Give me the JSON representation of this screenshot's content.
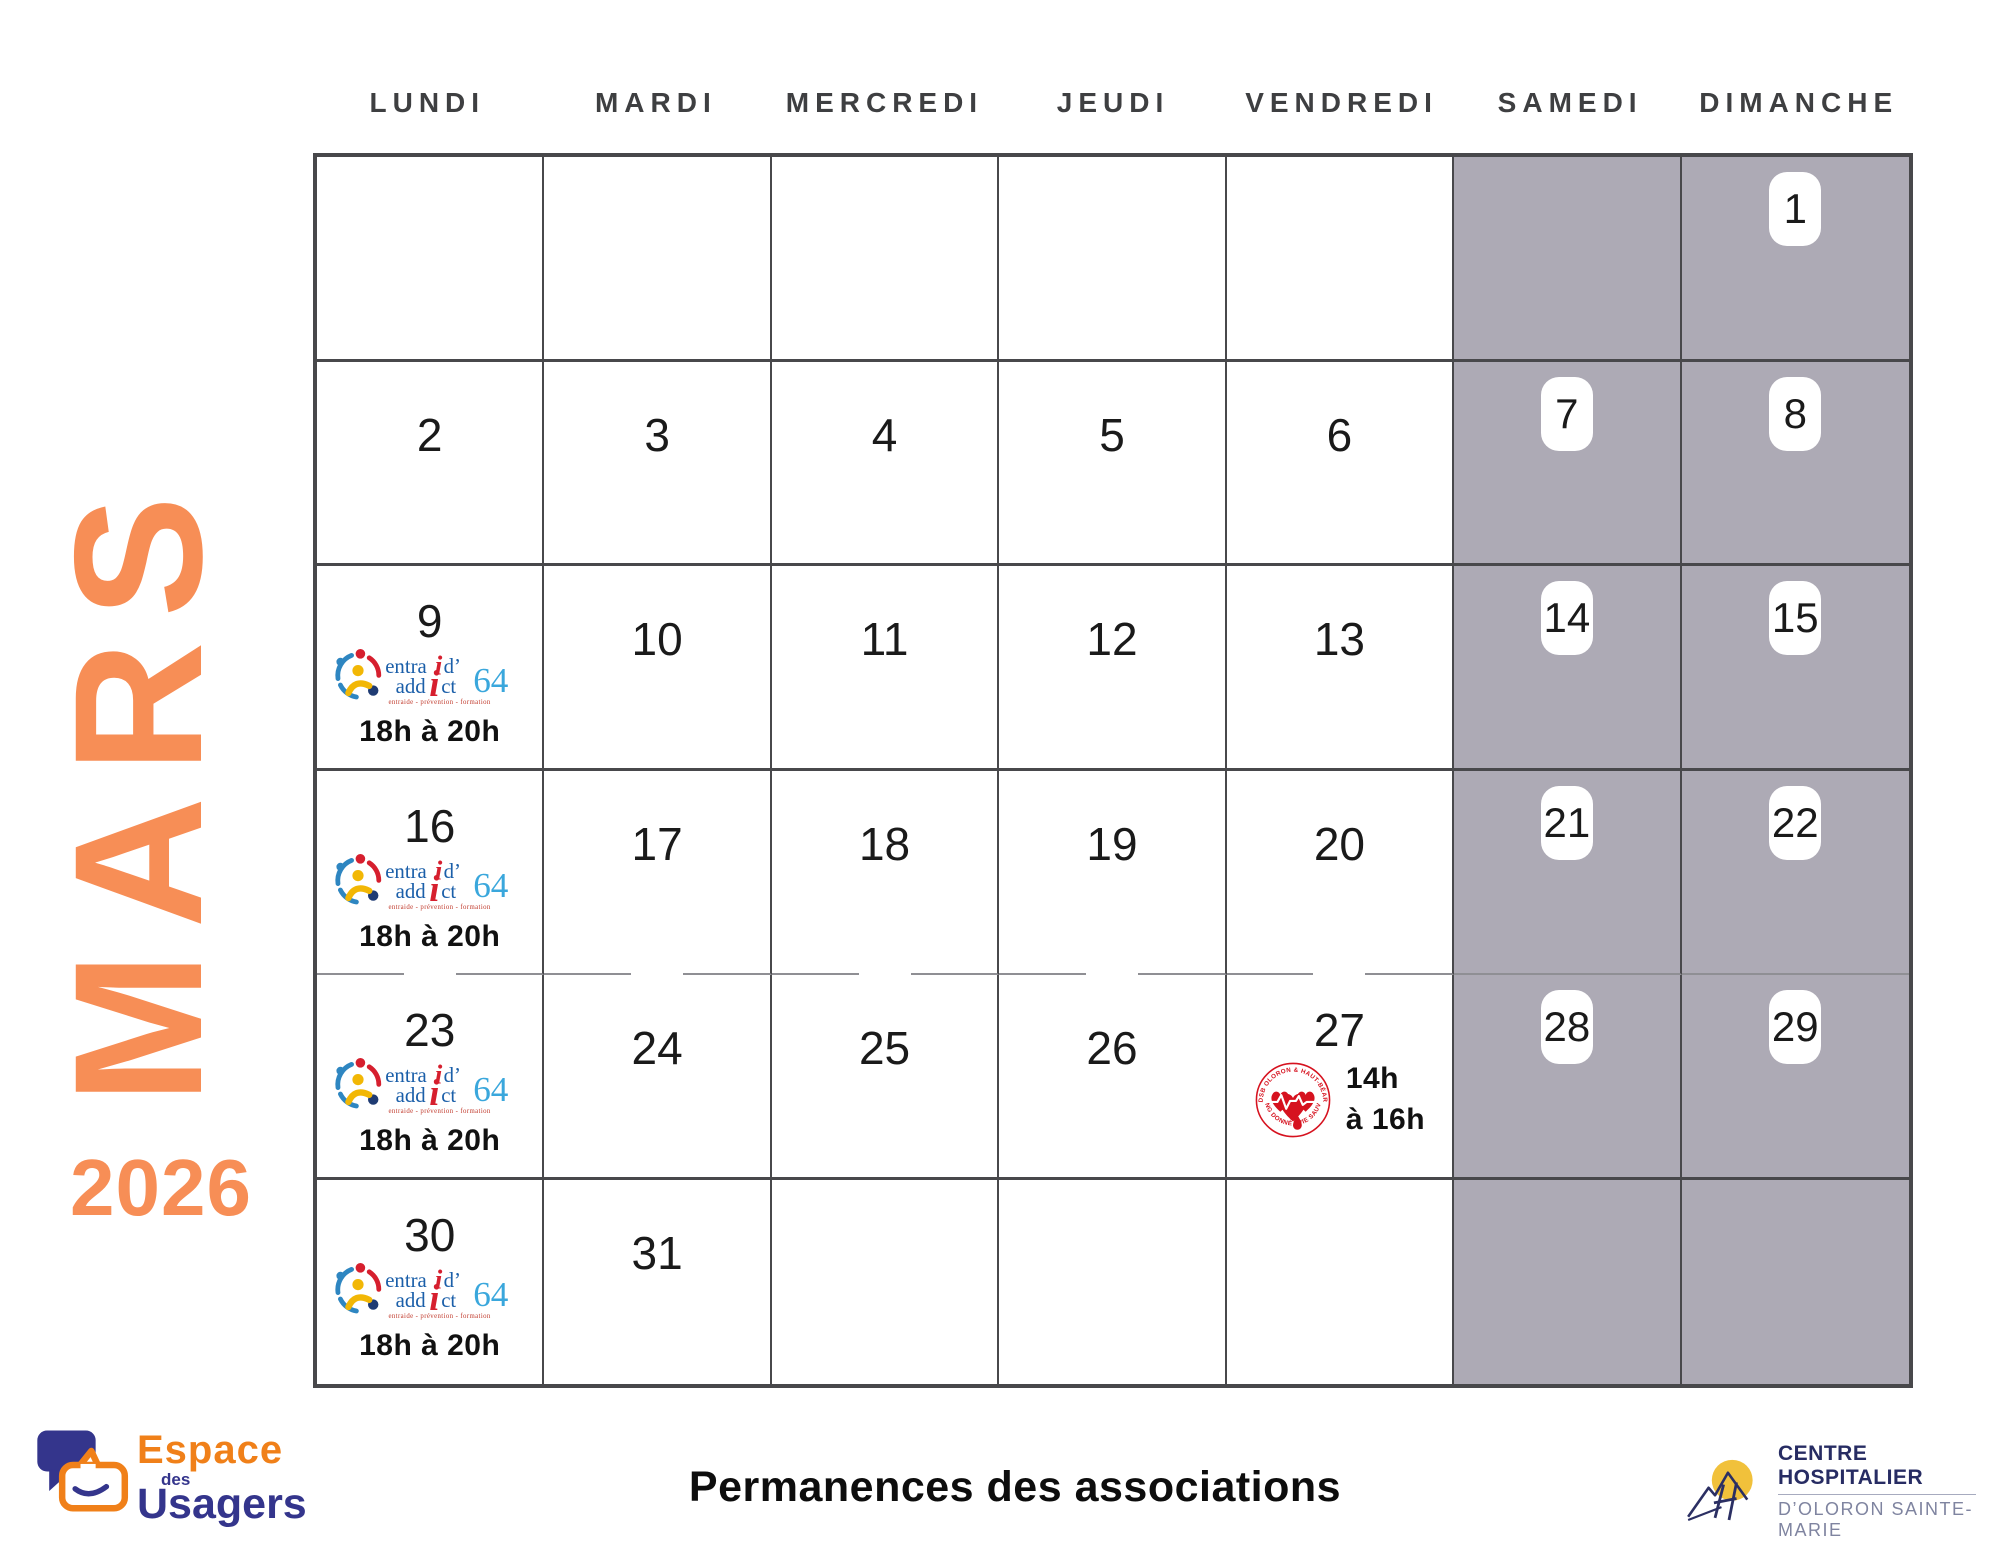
{
  "month_label": "MARS",
  "year_label": "2026",
  "weekday_headers": [
    "LUNDI",
    "MARDI",
    "MERCREDI",
    "JEUDI",
    "VENDREDI",
    "SAMEDI",
    "DIMANCHE"
  ],
  "caption": "Permanences des associations",
  "colors": {
    "accent_orange": "#F78E56",
    "weekend_bg": "#ADAAB5",
    "grid_border": "#48484B",
    "thin_divider": "#8F8F94",
    "header_text": "#3E3F41",
    "entraid_blue": "#1B5FA9",
    "entraid_red": "#D61F2E",
    "entraid_cyan": "#3AA7DC",
    "blood_red": "#D6121F",
    "espace_orange": "#F08019",
    "espace_indigo": "#34358C",
    "hospital_navy": "#272C63",
    "hospital_gray": "#7F84A0",
    "hospital_yellow": "#F1C13B"
  },
  "events": {
    "entraid": {
      "word1_part1": "entra",
      "word1_i": "i",
      "word1_part2": "d’",
      "word2_part1": "add",
      "word2_i": "i",
      "word2_part2": "ct",
      "number": "64",
      "tagline": "entraide - prévention - formation",
      "time": "18h à 20h"
    },
    "blood_donors": {
      "arc_top": "ADSB OLORON & HAUT-BÉARN",
      "arc_bottom": "SANG DONNÉ - VIE SAUVÉE",
      "time_line1": "14h",
      "time_line2": "à 16h"
    }
  },
  "calendar": {
    "cells": [
      {
        "day": "",
        "weekend": false
      },
      {
        "day": "",
        "weekend": false
      },
      {
        "day": "",
        "weekend": false
      },
      {
        "day": "",
        "weekend": false
      },
      {
        "day": "",
        "weekend": false
      },
      {
        "day": "",
        "weekend": true
      },
      {
        "day": "1",
        "weekend": true
      },
      {
        "day": "2",
        "weekend": false
      },
      {
        "day": "3",
        "weekend": false
      },
      {
        "day": "4",
        "weekend": false
      },
      {
        "day": "5",
        "weekend": false
      },
      {
        "day": "6",
        "weekend": false
      },
      {
        "day": "7",
        "weekend": true
      },
      {
        "day": "8",
        "weekend": true
      },
      {
        "day": "9",
        "weekend": false,
        "event": "entraid"
      },
      {
        "day": "10",
        "weekend": false
      },
      {
        "day": "11",
        "weekend": false
      },
      {
        "day": "12",
        "weekend": false
      },
      {
        "day": "13",
        "weekend": false
      },
      {
        "day": "14",
        "weekend": true
      },
      {
        "day": "15",
        "weekend": true
      },
      {
        "day": "16",
        "weekend": false,
        "event": "entraid"
      },
      {
        "day": "17",
        "weekend": false
      },
      {
        "day": "18",
        "weekend": false
      },
      {
        "day": "19",
        "weekend": false
      },
      {
        "day": "20",
        "weekend": false
      },
      {
        "day": "21",
        "weekend": true
      },
      {
        "day": "22",
        "weekend": true
      },
      {
        "day": "23",
        "weekend": false,
        "event": "entraid"
      },
      {
        "day": "24",
        "weekend": false
      },
      {
        "day": "25",
        "weekend": false
      },
      {
        "day": "26",
        "weekend": false
      },
      {
        "day": "27",
        "weekend": false,
        "event": "blood"
      },
      {
        "day": "28",
        "weekend": true
      },
      {
        "day": "29",
        "weekend": true
      },
      {
        "day": "30",
        "weekend": false,
        "event": "entraid"
      },
      {
        "day": "31",
        "weekend": false
      },
      {
        "day": "",
        "weekend": false
      },
      {
        "day": "",
        "weekend": false
      },
      {
        "day": "",
        "weekend": false
      },
      {
        "day": "",
        "weekend": true
      },
      {
        "day": "",
        "weekend": true
      }
    ]
  },
  "footer": {
    "espace": {
      "line1": "Espace",
      "line2_small": "des",
      "line3": "Usagers"
    },
    "hospital": {
      "line1": "CENTRE HOSPITALIER",
      "line2": "D’OLORON SAINTE-MARIE"
    }
  }
}
